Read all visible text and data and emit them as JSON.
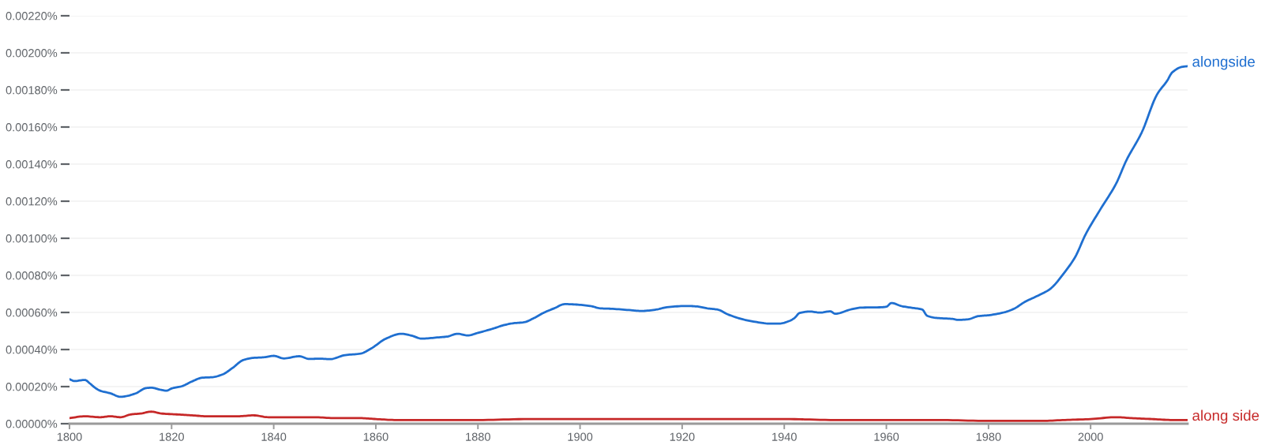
{
  "chart_data": {
    "type": "line",
    "series": [
      {
        "name": "alongside",
        "color": "#1f6fd0",
        "x": [
          1800,
          1801,
          1803,
          1804,
          1805,
          1806,
          1808,
          1810,
          1811,
          1813,
          1815,
          1816,
          1818,
          1819,
          1820,
          1822,
          1824,
          1826,
          1828,
          1830,
          1832,
          1834,
          1836,
          1838,
          1840,
          1842,
          1845,
          1847,
          1849,
          1851,
          1854,
          1857,
          1859,
          1862,
          1865,
          1867,
          1869,
          1872,
          1874,
          1876,
          1878,
          1880,
          1883,
          1885,
          1887,
          1889,
          1891,
          1893,
          1895,
          1897,
          1899,
          1902,
          1904,
          1906,
          1910,
          1912,
          1915,
          1917,
          1921,
          1923,
          1925,
          1927,
          1929,
          1932,
          1934,
          1937,
          1939,
          1941,
          1942,
          1943,
          1945,
          1947,
          1949,
          1950,
          1953,
          1955,
          1959,
          1960,
          1961,
          1963,
          1965,
          1967,
          1968,
          1970,
          1973,
          1974,
          1976,
          1978,
          1980,
          1983,
          1985,
          1987,
          1990,
          1992,
          1995,
          1997,
          1999,
          2002,
          2005,
          2007,
          2010,
          2013,
          2015,
          2016,
          2018,
          2019
        ],
        "values": [
          0.00024,
          0.00023,
          0.000236,
          0.000217,
          0.000194,
          0.000178,
          0.000164,
          0.000145,
          0.000148,
          0.000164,
          0.000192,
          0.000194,
          0.000182,
          0.000178,
          0.00019,
          0.000202,
          0.000228,
          0.000248,
          0.000251,
          0.000266,
          0.000302,
          0.000343,
          0.000355,
          0.000358,
          0.000366,
          0.000352,
          0.000364,
          0.000349,
          0.000351,
          0.000348,
          0.00037,
          0.000378,
          0.000404,
          0.000459,
          0.000485,
          0.000475,
          0.000459,
          0.000465,
          0.00047,
          0.000485,
          0.000476,
          0.00049,
          0.000513,
          0.000531,
          0.000542,
          0.000547,
          0.00057,
          0.0006,
          0.000623,
          0.000645,
          0.000643,
          0.000635,
          0.000622,
          0.00062,
          0.000612,
          0.000608,
          0.000616,
          0.000628,
          0.000635,
          0.000632,
          0.000622,
          0.000615,
          0.000589,
          0.000562,
          0.000551,
          0.00054,
          0.00054,
          0.000554,
          0.00057,
          0.000597,
          0.000605,
          0.000599,
          0.000606,
          0.000593,
          0.000616,
          0.000626,
          0.000628,
          0.000631,
          0.000651,
          0.000634,
          0.000625,
          0.000616,
          0.000582,
          0.00057,
          0.000565,
          0.00056,
          0.000563,
          0.00058,
          0.000585,
          0.0006,
          0.00062,
          0.000655,
          0.000695,
          0.000725,
          0.00082,
          0.0009,
          0.00102,
          0.00116,
          0.001295,
          0.00142,
          0.00157,
          0.001775,
          0.00185,
          0.001895,
          0.001925,
          0.001928
        ]
      },
      {
        "name": "along side",
        "color": "#c62828",
        "x": [
          1800,
          1803,
          1806,
          1808,
          1810,
          1812,
          1814,
          1816,
          1818,
          1821,
          1824,
          1827,
          1830,
          1833,
          1836,
          1839,
          1843,
          1848,
          1852,
          1857,
          1860,
          1864,
          1870,
          1880,
          1890,
          1900,
          1910,
          1920,
          1930,
          1940,
          1950,
          1960,
          1970,
          1980,
          1990,
          1995,
          2000,
          2005,
          2008,
          2012,
          2016,
          2019
        ],
        "values": [
          3e-05,
          4e-05,
          3.5e-05,
          4e-05,
          3.5e-05,
          5e-05,
          5.5e-05,
          6.5e-05,
          5.5e-05,
          5e-05,
          4.5e-05,
          4e-05,
          4e-05,
          4e-05,
          4.5e-05,
          3.5e-05,
          3.5e-05,
          3.5e-05,
          3e-05,
          3e-05,
          2.5e-05,
          2e-05,
          2e-05,
          2e-05,
          2.5e-05,
          2.5e-05,
          2.5e-05,
          2.5e-05,
          2.5e-05,
          2.5e-05,
          2e-05,
          2e-05,
          2e-05,
          1.5e-05,
          1.5e-05,
          2e-05,
          2.5e-05,
          3.5e-05,
          3e-05,
          2.5e-05,
          2e-05,
          2e-05
        ]
      }
    ],
    "xlim": [
      1800,
      2019
    ],
    "xticks": [
      1800,
      1820,
      1840,
      1860,
      1880,
      1900,
      1920,
      1940,
      1960,
      1980,
      2000
    ],
    "ylim": [
      0,
      0.0022
    ],
    "yticks": [
      {
        "value": 0,
        "label": "0.00000%"
      },
      {
        "value": 0.0002,
        "label": "0.00020%"
      },
      {
        "value": 0.0004,
        "label": "0.00040%"
      },
      {
        "value": 0.0006,
        "label": "0.00060%"
      },
      {
        "value": 0.0008,
        "label": "0.00080%"
      },
      {
        "value": 0.001,
        "label": "0.00100%"
      },
      {
        "value": 0.0012,
        "label": "0.00120%"
      },
      {
        "value": 0.0014,
        "label": "0.00140%"
      },
      {
        "value": 0.0016,
        "label": "0.00160%"
      },
      {
        "value": 0.0018,
        "label": "0.00180%"
      },
      {
        "value": 0.002,
        "label": "0.00200%"
      },
      {
        "value": 0.0022,
        "label": "0.00220%"
      }
    ],
    "grid": "y",
    "legend": false,
    "line_style": "solid",
    "marker": "none"
  }
}
